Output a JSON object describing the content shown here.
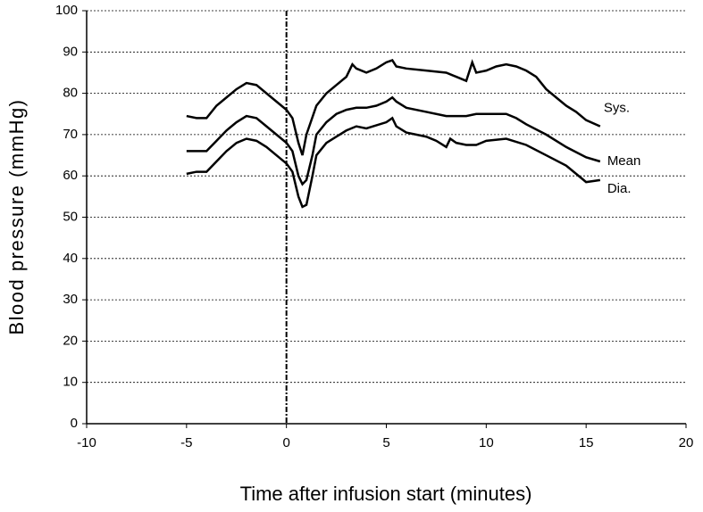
{
  "chart_data": {
    "type": "line",
    "xlabel": "Time after infusion start (minutes)",
    "ylabel": "Blood pressure (mmHg)",
    "xlim": [
      -10,
      20
    ],
    "xticks": [
      -10,
      -5,
      0,
      5,
      10,
      15,
      20
    ],
    "ylim": [
      0,
      100
    ],
    "yticks": [
      0,
      10,
      20,
      30,
      40,
      50,
      60,
      70,
      80,
      90,
      100
    ],
    "grid": true,
    "vline": 0,
    "series": [
      {
        "name": "Sys.",
        "color": "#000000",
        "x": [
          -5,
          -4.5,
          -4,
          -3.5,
          -3,
          -2.5,
          -2,
          -1.5,
          -1,
          -0.5,
          0,
          0.3,
          0.6,
          0.8,
          1,
          1.5,
          2,
          2.5,
          3,
          3.3,
          3.5,
          4,
          4.5,
          5,
          5.3,
          5.5,
          6,
          7,
          8,
          8.5,
          9,
          9.3,
          9.5,
          10,
          10.5,
          11,
          11.5,
          12,
          12.5,
          13,
          13.5,
          14,
          14.5,
          15,
          15.7
        ],
        "values": [
          74.5,
          74,
          74,
          77,
          79,
          81,
          82.5,
          82,
          80,
          78,
          76,
          74,
          68,
          65,
          70,
          77,
          80,
          82,
          84,
          87,
          86,
          85,
          86,
          87.5,
          88,
          86.5,
          86,
          85.5,
          85,
          84,
          83,
          87.5,
          85,
          85.5,
          86.5,
          87,
          86.5,
          85.5,
          84,
          81,
          79,
          77,
          75.5,
          73.5,
          72
        ]
      },
      {
        "name": "Mean",
        "color": "#000000",
        "x": [
          -5,
          -4.5,
          -4,
          -3.5,
          -3,
          -2.5,
          -2,
          -1.5,
          -1,
          -0.5,
          0,
          0.3,
          0.6,
          0.8,
          1,
          1.3,
          1.5,
          2,
          2.5,
          3,
          3.5,
          4,
          4.5,
          5,
          5.3,
          5.5,
          6,
          7,
          8,
          9,
          9.5,
          10,
          11,
          11.5,
          12,
          13,
          14,
          15,
          15.7
        ],
        "values": [
          66,
          66,
          66,
          68.5,
          71,
          73,
          74.5,
          74,
          72,
          70,
          68,
          66,
          60,
          58,
          59,
          65,
          70,
          73,
          75,
          76,
          76.5,
          76.5,
          77,
          78,
          79,
          78,
          76.5,
          75.5,
          74.5,
          74.5,
          75,
          75,
          75,
          74,
          72.5,
          70,
          67,
          64.5,
          63.5
        ]
      },
      {
        "name": "Dia.",
        "color": "#000000",
        "x": [
          -5,
          -4.5,
          -4,
          -3.5,
          -3,
          -2.5,
          -2,
          -1.5,
          -1,
          -0.5,
          0,
          0.3,
          0.6,
          0.8,
          1,
          1.3,
          1.5,
          2,
          2.5,
          3,
          3.5,
          4,
          5,
          5.3,
          5.5,
          6,
          7,
          7.5,
          8,
          8.2,
          8.5,
          9,
          9.5,
          10,
          11,
          12,
          13,
          14,
          14.5,
          15,
          15.7
        ],
        "values": [
          60.5,
          61,
          61,
          63.5,
          66,
          68,
          69,
          68.5,
          67,
          65,
          63,
          61,
          55,
          52.5,
          53,
          60,
          65,
          68,
          69.5,
          71,
          72,
          71.5,
          73,
          74,
          72,
          70.5,
          69.5,
          68.5,
          67,
          69,
          68,
          67.5,
          67.5,
          68.5,
          69,
          67.5,
          65,
          62.5,
          60.5,
          58.5,
          59
        ]
      }
    ]
  }
}
